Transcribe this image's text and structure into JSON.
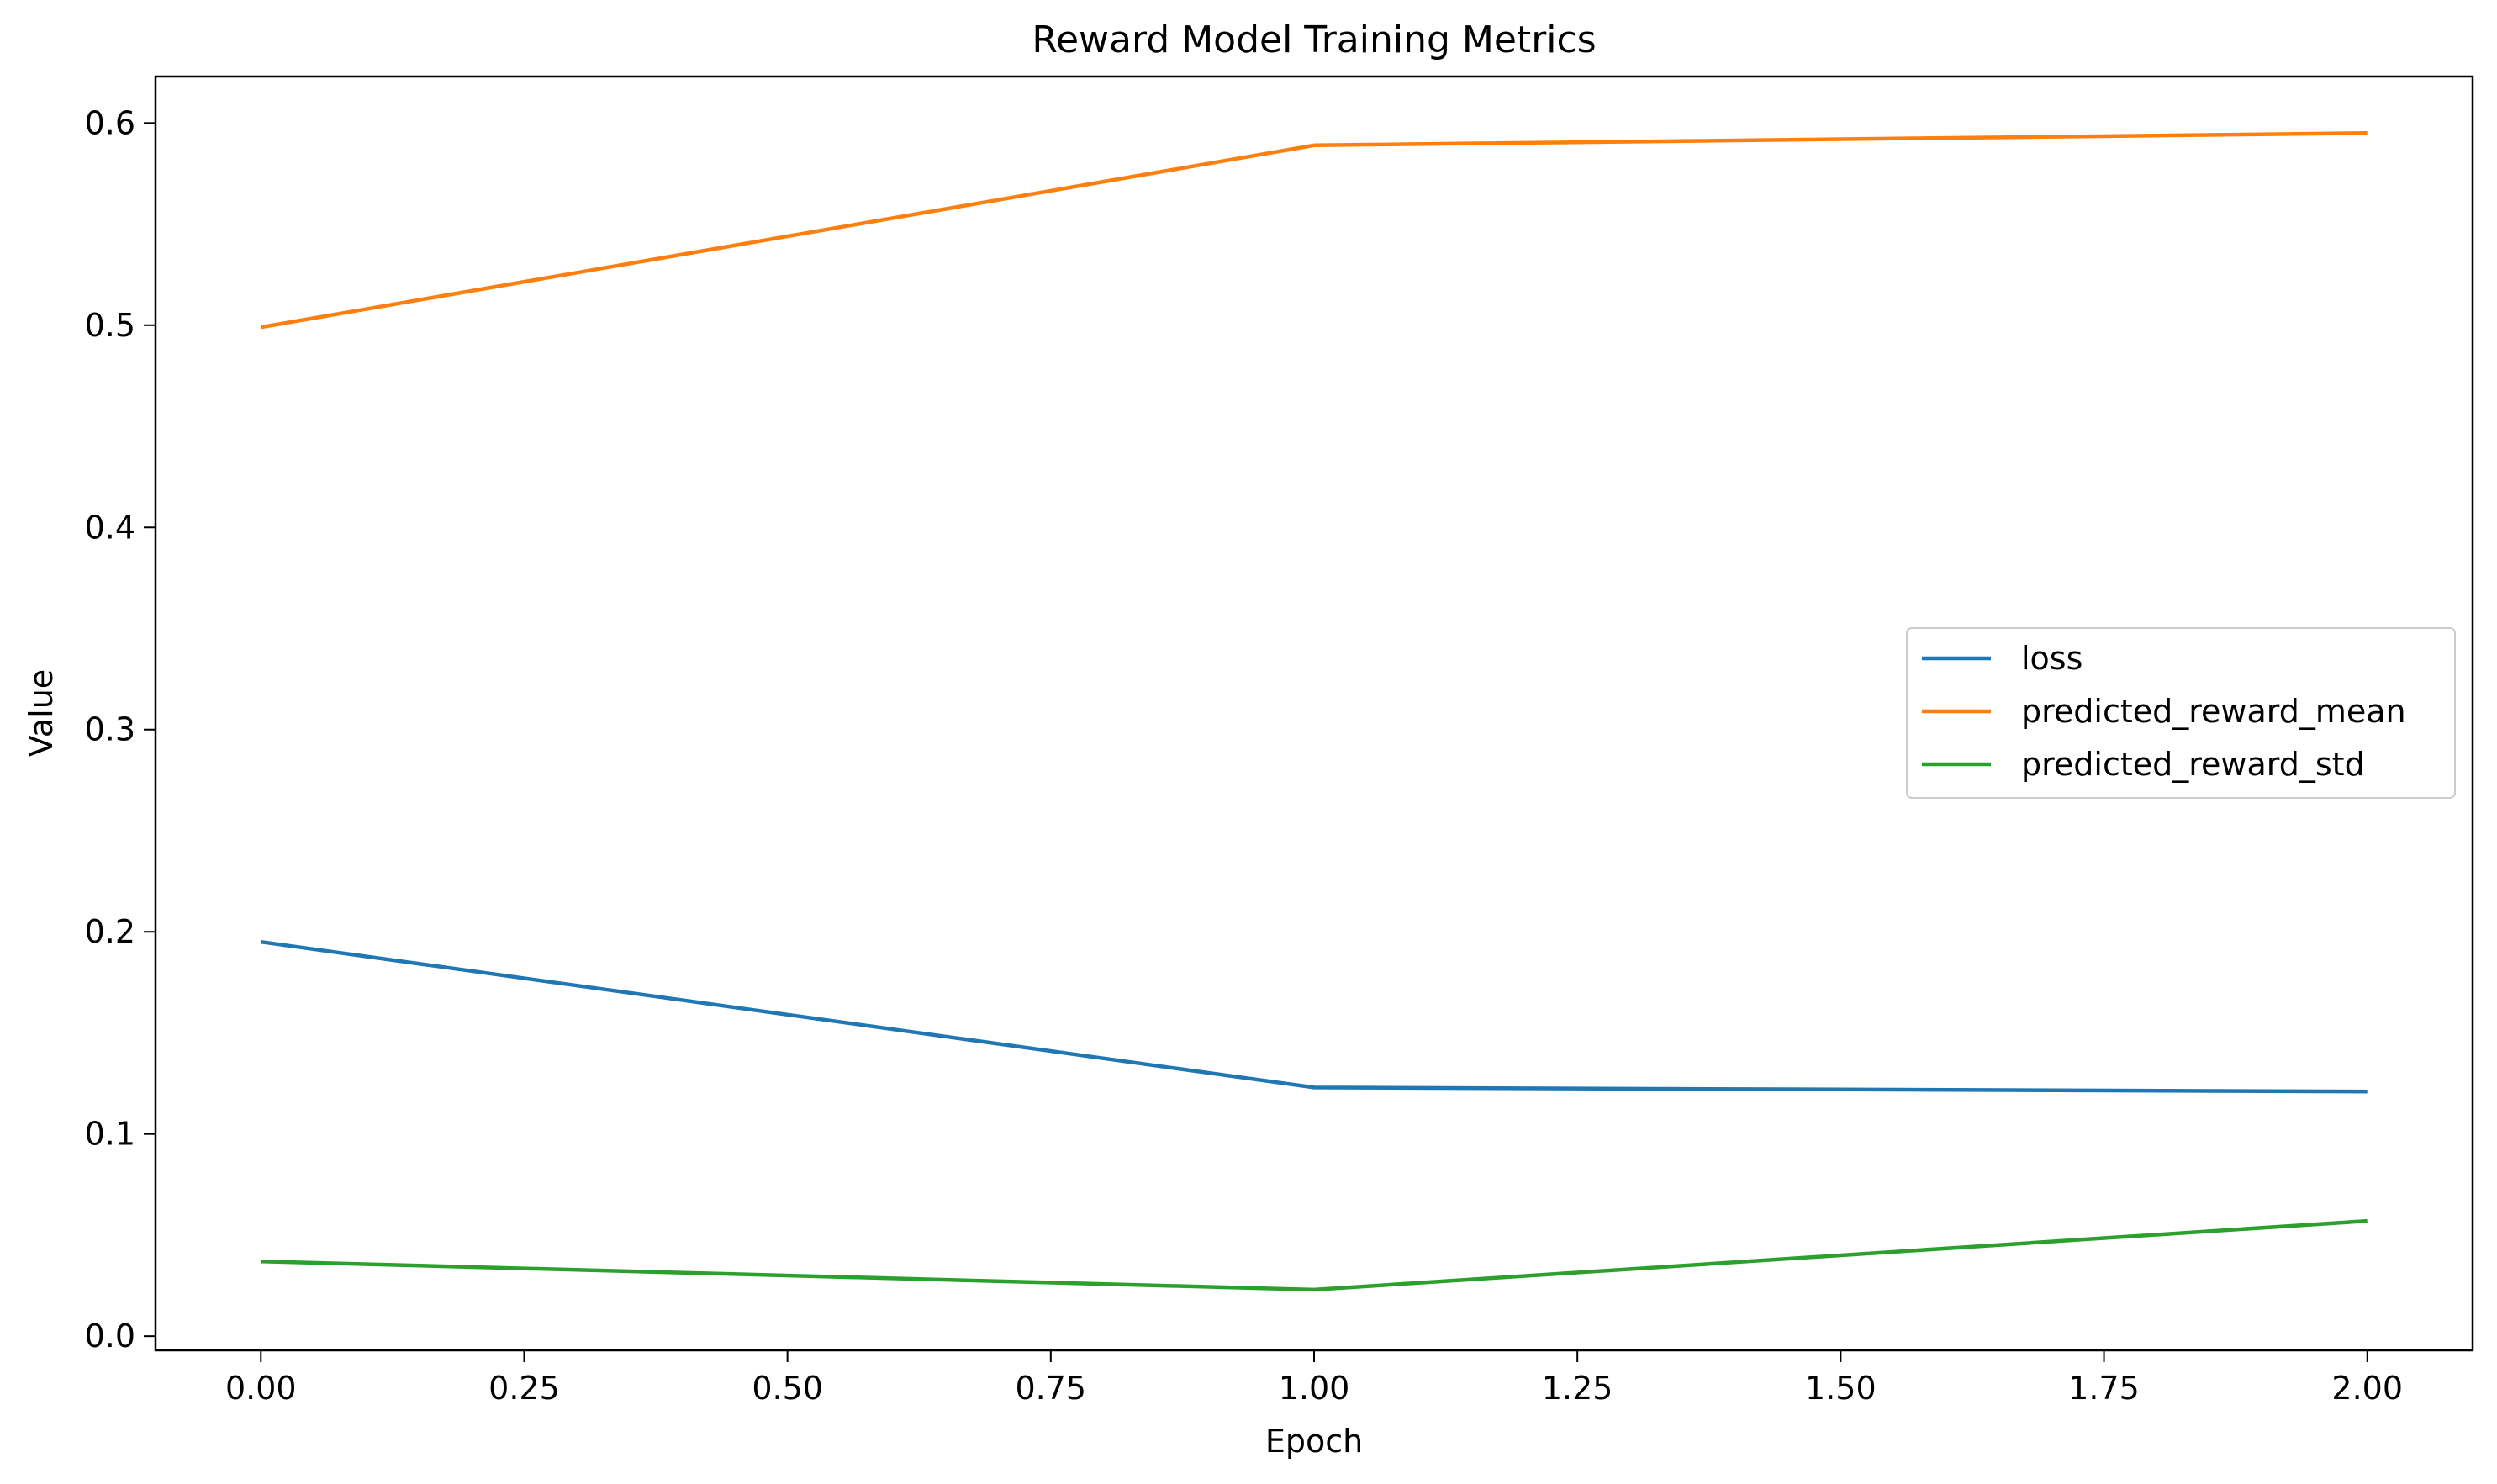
{
  "chart_data": {
    "type": "line",
    "title": "Reward Model Training Metrics",
    "xlabel": "Epoch",
    "ylabel": "Value",
    "x": [
      0,
      1,
      2
    ],
    "xlim": [
      -0.1,
      2.1
    ],
    "ylim": [
      -0.007,
      0.623
    ],
    "xticks": [
      "0.00",
      "0.25",
      "0.50",
      "0.75",
      "1.00",
      "1.25",
      "1.50",
      "1.75",
      "2.00"
    ],
    "yticks": [
      "0.0",
      "0.1",
      "0.2",
      "0.3",
      "0.4",
      "0.5",
      "0.6"
    ],
    "grid": false,
    "legend_position": "center-right",
    "series": [
      {
        "name": "loss",
        "color": "#1f77b4",
        "values": [
          0.195,
          0.123,
          0.121
        ]
      },
      {
        "name": "predicted_reward_mean",
        "color": "#ff7f0e",
        "values": [
          0.499,
          0.589,
          0.595
        ]
      },
      {
        "name": "predicted_reward_std",
        "color": "#2ca02c",
        "values": [
          0.037,
          0.023,
          0.057
        ]
      }
    ]
  }
}
